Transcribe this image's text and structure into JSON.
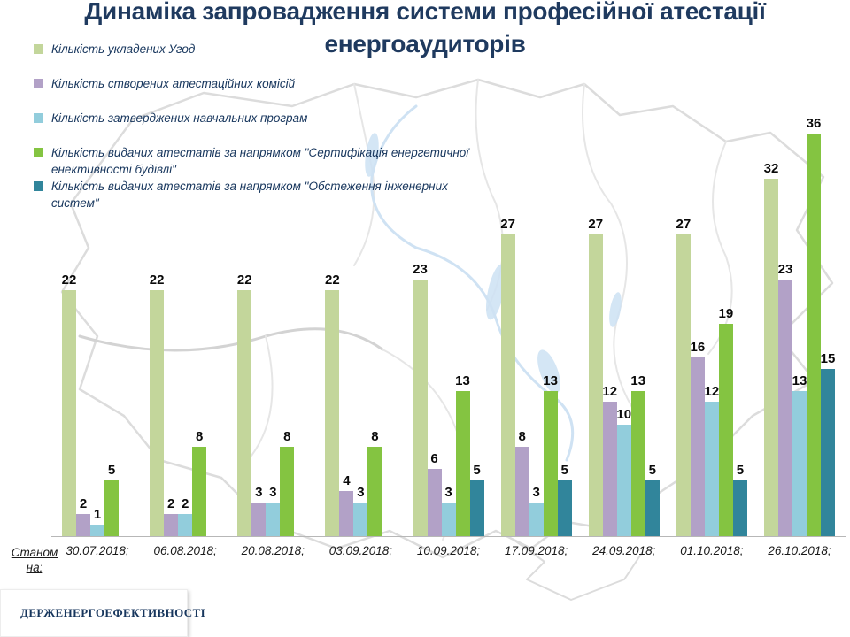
{
  "title": {
    "line1": "Динаміка запровадження системи професійної атестації",
    "line2": "енергоаудиторів"
  },
  "legend": {
    "items": [
      {
        "label": "Кількість укладених  Угод",
        "color": "#c3d69b"
      },
      {
        "label": "Кількість створених атестаційних комісій",
        "color": "#b2a1c7"
      },
      {
        "label": "Кількість затверджених навчальних  програм",
        "color": "#92cddc"
      },
      {
        "label": "Кількість виданих атестатів за напрямком \"Сертифікація енергетичної енективності будівлі\"",
        "color": "#84c441"
      },
      {
        "label": "Кількість виданих атестатів за напрямком \"Обстеження інженерних систем\"",
        "color": "#31859b"
      }
    ]
  },
  "chart_data": {
    "type": "bar",
    "title": "Динаміка запровадження системи професійної атестації енергоаудиторів",
    "categories": [
      "30.07.2018;",
      "06.08.2018;",
      "20.08.2018;",
      "03.09.2018;",
      "10.09.2018;",
      "17.09.2018;",
      "24.09.2018;",
      "01.10.2018;",
      "26.10.2018;"
    ],
    "series": [
      {
        "name": "Кількість укладених Угод",
        "color": "#c3d69b",
        "values": [
          22,
          22,
          22,
          22,
          23,
          27,
          27,
          27,
          32
        ]
      },
      {
        "name": "Кількість створених атестаційних комісій",
        "color": "#b2a1c7",
        "values": [
          2,
          2,
          3,
          4,
          6,
          8,
          12,
          16,
          23
        ]
      },
      {
        "name": "Кількість затверджених навчальних програм",
        "color": "#92cddc",
        "values": [
          1,
          2,
          3,
          3,
          3,
          3,
          10,
          12,
          13
        ]
      },
      {
        "name": "Кількість виданих атестатів за напрямком \"Сертифікація енергетичної енективності будівлі\"",
        "color": "#84c441",
        "values": [
          5,
          8,
          8,
          8,
          13,
          13,
          13,
          19,
          36
        ]
      },
      {
        "name": "Кількість виданих атестатів за напрямком \"Обстеження інженерних систем\"",
        "color": "#31859b",
        "values": [
          0,
          0,
          0,
          0,
          5,
          5,
          5,
          5,
          15
        ]
      }
    ],
    "ylim": [
      0,
      40
    ],
    "grid": false,
    "legend_position": "upper-left",
    "data_labels": true,
    "xlabel": "",
    "ylabel": ""
  },
  "x_axis_note": {
    "line1": "Станом",
    "line2": "на:"
  },
  "footer": {
    "logo_text": "ДЕРЖЕНЕРГОЕФЕКТИВНОСТІ"
  }
}
